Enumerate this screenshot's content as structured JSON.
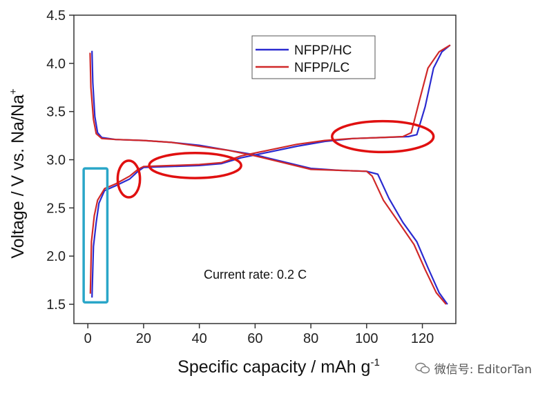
{
  "watermark": "微信号: EditorTan",
  "chart_data": {
    "type": "line",
    "xlabel": "Specific capacity / mAh g",
    "xlabel_sup": "-1",
    "ylabel": "Voltage /  V vs. Na/Na",
    "ylabel_sup": "+",
    "xlim": [
      -5,
      132
    ],
    "ylim": [
      1.3,
      4.5
    ],
    "xticks": [
      0,
      20,
      40,
      60,
      80,
      100,
      120
    ],
    "yticks": [
      1.5,
      2.0,
      2.5,
      3.0,
      3.5,
      4.0,
      4.5
    ],
    "ytick_labels": [
      "1.5",
      "2.0",
      "2.5",
      "3.0",
      "3.5",
      "4.0",
      "4.5"
    ],
    "annotation": "Current rate: 0.2 C",
    "legend_position": "top-right",
    "series": [
      {
        "name": "NFPP/HC",
        "color": "#2a2ad0",
        "segments": [
          [
            [
              1.5,
              4.13
            ],
            [
              1.8,
              3.8
            ],
            [
              2.5,
              3.45
            ],
            [
              3.5,
              3.28
            ],
            [
              5,
              3.23
            ],
            [
              10,
              3.21
            ],
            [
              20,
              3.2
            ],
            [
              30,
              3.18
            ],
            [
              40,
              3.15
            ],
            [
              50,
              3.1
            ],
            [
              60,
              3.05
            ],
            [
              70,
              2.98
            ],
            [
              80,
              2.91
            ],
            [
              90,
              2.89
            ],
            [
              100,
              2.88
            ],
            [
              104,
              2.85
            ],
            [
              108,
              2.6
            ],
            [
              113,
              2.35
            ],
            [
              118,
              2.15
            ],
            [
              122,
              1.88
            ],
            [
              126,
              1.62
            ],
            [
              129,
              1.5
            ]
          ],
          [
            [
              1.5,
              1.57
            ],
            [
              2,
              2.1
            ],
            [
              3,
              2.35
            ],
            [
              4,
              2.55
            ],
            [
              6,
              2.68
            ],
            [
              10,
              2.73
            ],
            [
              15,
              2.8
            ],
            [
              18,
              2.88
            ],
            [
              20,
              2.92
            ],
            [
              30,
              2.93
            ],
            [
              40,
              2.94
            ],
            [
              48,
              2.96
            ],
            [
              55,
              3.02
            ],
            [
              65,
              3.08
            ],
            [
              75,
              3.14
            ],
            [
              85,
              3.19
            ],
            [
              95,
              3.22
            ],
            [
              105,
              3.23
            ],
            [
              115,
              3.24
            ],
            [
              118,
              3.26
            ],
            [
              121,
              3.55
            ],
            [
              124,
              3.95
            ],
            [
              127,
              4.12
            ],
            [
              130,
              4.19
            ]
          ]
        ]
      },
      {
        "name": "NFPP/LC",
        "color": "#d02828",
        "segments": [
          [
            [
              0.8,
              4.11
            ],
            [
              1.1,
              3.75
            ],
            [
              2,
              3.42
            ],
            [
              3,
              3.27
            ],
            [
              5,
              3.22
            ],
            [
              10,
              3.21
            ],
            [
              20,
              3.2
            ],
            [
              30,
              3.18
            ],
            [
              40,
              3.14
            ],
            [
              50,
              3.1
            ],
            [
              60,
              3.04
            ],
            [
              70,
              2.97
            ],
            [
              80,
              2.9
            ],
            [
              90,
              2.89
            ],
            [
              100,
              2.88
            ],
            [
              102,
              2.83
            ],
            [
              106,
              2.58
            ],
            [
              112,
              2.33
            ],
            [
              117,
              2.12
            ],
            [
              121,
              1.86
            ],
            [
              125,
              1.62
            ],
            [
              128.5,
              1.5
            ]
          ],
          [
            [
              0.9,
              1.61
            ],
            [
              1.3,
              2.15
            ],
            [
              2.3,
              2.42
            ],
            [
              3.5,
              2.58
            ],
            [
              6,
              2.7
            ],
            [
              10,
              2.75
            ],
            [
              15,
              2.83
            ],
            [
              18,
              2.9
            ],
            [
              20,
              2.93
            ],
            [
              30,
              2.94
            ],
            [
              40,
              2.95
            ],
            [
              48,
              2.97
            ],
            [
              55,
              3.04
            ],
            [
              65,
              3.1
            ],
            [
              75,
              3.16
            ],
            [
              85,
              3.2
            ],
            [
              95,
              3.22
            ],
            [
              105,
              3.23
            ],
            [
              113,
              3.24
            ],
            [
              116,
              3.28
            ],
            [
              119,
              3.62
            ],
            [
              122,
              3.95
            ],
            [
              126,
              4.12
            ],
            [
              130,
              4.19
            ]
          ]
        ]
      }
    ],
    "highlights": [
      {
        "shape": "rect",
        "color": "#2aa6c8",
        "x": [
          -1.5,
          7
        ],
        "y": [
          1.52,
          2.91
        ]
      },
      {
        "shape": "ellipse",
        "color": "#e01010",
        "cx": 14.7,
        "cy": 2.8,
        "rx": 4,
        "ry": 0.19
      },
      {
        "shape": "ellipse",
        "color": "#e01010",
        "cx": 38.5,
        "cy": 2.94,
        "rx": 16.5,
        "ry": 0.13
      },
      {
        "shape": "ellipse",
        "color": "#e01010",
        "cx": 105.8,
        "cy": 3.24,
        "rx": 18.2,
        "ry": 0.16
      }
    ]
  }
}
